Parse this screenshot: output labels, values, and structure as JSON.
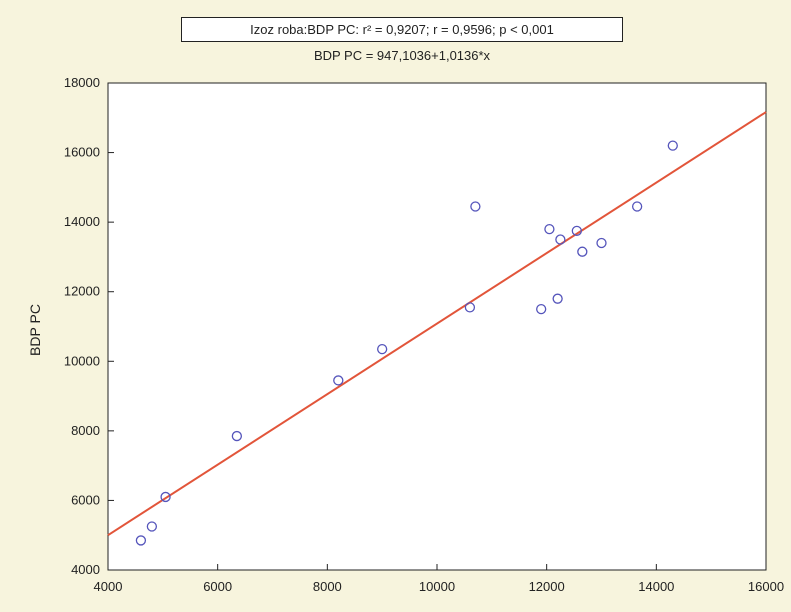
{
  "chart_data": {
    "type": "scatter",
    "title": "Izoz roba:BDP PC:  r² = 0,9207;  r = 0,9596; p < 0,001",
    "subtitle": "BDP PC = 947,1036+1,0136*x",
    "xlabel": "",
    "ylabel": "BDP PC",
    "xlim": [
      4000,
      16000
    ],
    "ylim": [
      4000,
      18000
    ],
    "x_ticks": [
      "4000",
      "6000",
      "8000",
      "10000",
      "12000",
      "14000",
      "16000"
    ],
    "y_ticks": [
      "4000",
      "6000",
      "8000",
      "10000",
      "12000",
      "14000",
      "16000",
      "18000"
    ],
    "grid": false,
    "legend": "none",
    "point_color": "#5555bb",
    "line_color": "#e2553a",
    "points": [
      {
        "x": 4600,
        "y": 4850
      },
      {
        "x": 4800,
        "y": 5250
      },
      {
        "x": 5050,
        "y": 6100
      },
      {
        "x": 6350,
        "y": 7850
      },
      {
        "x": 8200,
        "y": 9450
      },
      {
        "x": 9000,
        "y": 10350
      },
      {
        "x": 10600,
        "y": 11550
      },
      {
        "x": 10700,
        "y": 14450
      },
      {
        "x": 11900,
        "y": 11500
      },
      {
        "x": 12050,
        "y": 13800
      },
      {
        "x": 12200,
        "y": 11800
      },
      {
        "x": 12250,
        "y": 13500
      },
      {
        "x": 12550,
        "y": 13750
      },
      {
        "x": 12650,
        "y": 13150
      },
      {
        "x": 13000,
        "y": 13400
      },
      {
        "x": 13650,
        "y": 14450
      },
      {
        "x": 14300,
        "y": 16200
      }
    ],
    "regression": {
      "intercept": 947.1036,
      "slope": 1.0136
    }
  }
}
